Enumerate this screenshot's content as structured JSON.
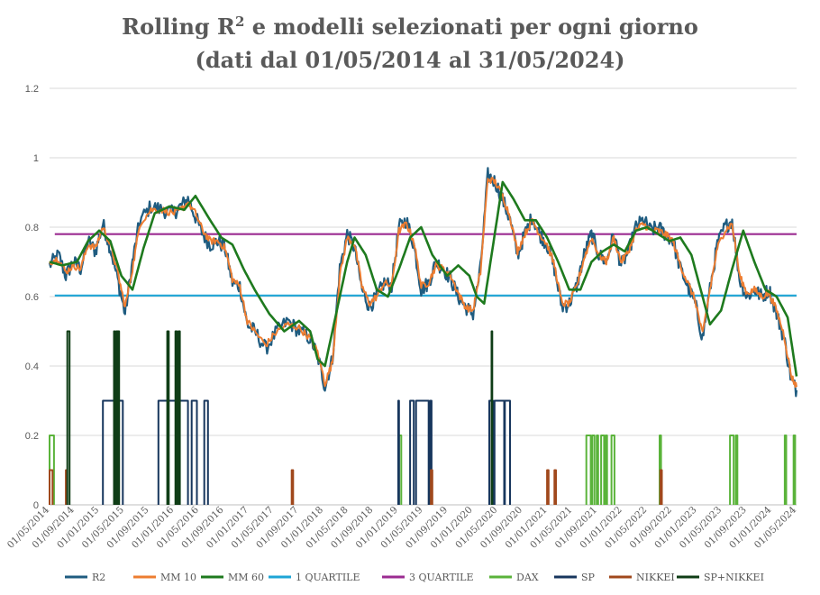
{
  "chart_data": {
    "type": "line",
    "title_line1": "Rolling R",
    "title_sup": "2",
    "title_line1_rest": " e modelli selezionati per ogni giorno",
    "title_line2": "(dati dal 01/05/2014 al 31/05/2024)",
    "xlabel": "",
    "ylabel": "",
    "ylim": [
      0,
      1.2
    ],
    "yticks": [
      "0",
      "0.2",
      "0.4",
      "0.6",
      "0.8",
      "1",
      "1.2"
    ],
    "xlim": [
      2014.33,
      2024.42
    ],
    "xticks": [
      "01/05/2014",
      "01/09/2014",
      "01/01/2015",
      "01/05/2015",
      "01/09/2015",
      "01/01/2016",
      "01/05/2016",
      "01/09/2016",
      "01/01/2017",
      "01/05/2017",
      "01/09/2017",
      "01/01/2018",
      "01/05/2018",
      "01/09/2018",
      "01/01/2019",
      "01/05/2019",
      "01/09/2019",
      "01/01/2020",
      "01/05/2020",
      "01/09/2020",
      "01/01/2021",
      "01/05/2021",
      "01/09/2021",
      "01/01/2022",
      "01/05/2022",
      "01/09/2022",
      "01/01/2023",
      "01/05/2023",
      "01/09/2023",
      "01/01/2024",
      "01/05/2024"
    ],
    "grid": true,
    "legend_position": "bottom",
    "series": [
      {
        "name": "R2",
        "color": "#1f5c80",
        "width": 2.2,
        "noise": 0.022,
        "x": [
          2014.33,
          2014.45,
          2014.55,
          2014.65,
          2014.75,
          2014.85,
          2014.95,
          2015.05,
          2015.15,
          2015.25,
          2015.35,
          2015.45,
          2015.55,
          2015.7,
          2015.85,
          2016.0,
          2016.1,
          2016.2,
          2016.3,
          2016.4,
          2016.5,
          2016.6,
          2016.7,
          2016.8,
          2016.9,
          2017.0,
          2017.1,
          2017.25,
          2017.4,
          2017.55,
          2017.7,
          2017.85,
          2017.95,
          2018.05,
          2018.15,
          2018.25,
          2018.35,
          2018.45,
          2018.55,
          2018.65,
          2018.75,
          2018.85,
          2018.95,
          2019.05,
          2019.15,
          2019.25,
          2019.35,
          2019.45,
          2019.55,
          2019.65,
          2019.75,
          2019.85,
          2019.95,
          2020.05,
          2020.15,
          2020.25,
          2020.35,
          2020.45,
          2020.55,
          2020.65,
          2020.75,
          2020.85,
          2020.95,
          2021.05,
          2021.15,
          2021.25,
          2021.35,
          2021.45,
          2021.55,
          2021.65,
          2021.75,
          2021.85,
          2021.95,
          2022.05,
          2022.15,
          2022.25,
          2022.35,
          2022.45,
          2022.55,
          2022.65,
          2022.75,
          2022.85,
          2022.95,
          2023.05,
          2023.15,
          2023.25,
          2023.35,
          2023.45,
          2023.55,
          2023.65,
          2023.75,
          2023.85,
          2023.95,
          2024.05,
          2024.15,
          2024.25,
          2024.35,
          2024.42
        ],
        "y": [
          0.69,
          0.72,
          0.66,
          0.7,
          0.68,
          0.76,
          0.73,
          0.81,
          0.74,
          0.65,
          0.55,
          0.7,
          0.82,
          0.86,
          0.85,
          0.84,
          0.86,
          0.88,
          0.83,
          0.78,
          0.75,
          0.76,
          0.74,
          0.64,
          0.63,
          0.52,
          0.5,
          0.45,
          0.5,
          0.53,
          0.5,
          0.48,
          0.43,
          0.34,
          0.42,
          0.68,
          0.78,
          0.74,
          0.62,
          0.57,
          0.6,
          0.64,
          0.63,
          0.8,
          0.82,
          0.75,
          0.62,
          0.64,
          0.7,
          0.68,
          0.65,
          0.6,
          0.57,
          0.55,
          0.68,
          0.95,
          0.93,
          0.88,
          0.82,
          0.72,
          0.78,
          0.83,
          0.78,
          0.75,
          0.68,
          0.57,
          0.58,
          0.63,
          0.72,
          0.78,
          0.72,
          0.7,
          0.78,
          0.69,
          0.73,
          0.8,
          0.82,
          0.79,
          0.8,
          0.78,
          0.76,
          0.68,
          0.63,
          0.58,
          0.48,
          0.62,
          0.75,
          0.8,
          0.82,
          0.65,
          0.6,
          0.62,
          0.6,
          0.62,
          0.55,
          0.48,
          0.36,
          0.33
        ]
      },
      {
        "name": "MM 10",
        "color": "#ed7d31",
        "width": 2.0,
        "noise": 0.01,
        "x": [
          2014.33,
          2014.45,
          2014.55,
          2014.65,
          2014.75,
          2014.85,
          2014.95,
          2015.05,
          2015.15,
          2015.25,
          2015.35,
          2015.45,
          2015.55,
          2015.7,
          2015.85,
          2016.0,
          2016.1,
          2016.2,
          2016.3,
          2016.4,
          2016.5,
          2016.6,
          2016.7,
          2016.8,
          2016.9,
          2017.0,
          2017.1,
          2017.25,
          2017.4,
          2017.55,
          2017.7,
          2017.85,
          2017.95,
          2018.05,
          2018.15,
          2018.25,
          2018.35,
          2018.45,
          2018.55,
          2018.65,
          2018.75,
          2018.85,
          2018.95,
          2019.05,
          2019.15,
          2019.25,
          2019.35,
          2019.45,
          2019.55,
          2019.65,
          2019.75,
          2019.85,
          2019.95,
          2020.05,
          2020.15,
          2020.25,
          2020.35,
          2020.45,
          2020.55,
          2020.65,
          2020.75,
          2020.85,
          2020.95,
          2021.05,
          2021.15,
          2021.25,
          2021.35,
          2021.45,
          2021.55,
          2021.65,
          2021.75,
          2021.85,
          2021.95,
          2022.05,
          2022.15,
          2022.25,
          2022.35,
          2022.45,
          2022.55,
          2022.65,
          2022.75,
          2022.85,
          2022.95,
          2023.05,
          2023.15,
          2023.25,
          2023.35,
          2023.45,
          2023.55,
          2023.65,
          2023.75,
          2023.85,
          2023.95,
          2024.05,
          2024.15,
          2024.25,
          2024.35,
          2024.42
        ],
        "y": [
          0.7,
          0.71,
          0.67,
          0.69,
          0.68,
          0.75,
          0.74,
          0.8,
          0.75,
          0.67,
          0.57,
          0.68,
          0.81,
          0.85,
          0.85,
          0.84,
          0.85,
          0.87,
          0.84,
          0.79,
          0.76,
          0.76,
          0.74,
          0.65,
          0.63,
          0.53,
          0.5,
          0.46,
          0.5,
          0.52,
          0.51,
          0.48,
          0.44,
          0.35,
          0.41,
          0.66,
          0.77,
          0.75,
          0.63,
          0.58,
          0.6,
          0.64,
          0.63,
          0.79,
          0.81,
          0.76,
          0.63,
          0.64,
          0.69,
          0.68,
          0.66,
          0.61,
          0.57,
          0.56,
          0.67,
          0.94,
          0.93,
          0.89,
          0.83,
          0.73,
          0.78,
          0.82,
          0.78,
          0.75,
          0.69,
          0.58,
          0.58,
          0.63,
          0.71,
          0.77,
          0.72,
          0.7,
          0.77,
          0.7,
          0.73,
          0.79,
          0.81,
          0.79,
          0.79,
          0.78,
          0.76,
          0.69,
          0.64,
          0.59,
          0.49,
          0.62,
          0.74,
          0.79,
          0.81,
          0.66,
          0.61,
          0.62,
          0.6,
          0.61,
          0.56,
          0.49,
          0.37,
          0.34
        ]
      },
      {
        "name": "MM 60",
        "color": "#1e7a1e",
        "width": 2.6,
        "noise": 0,
        "x": [
          2014.33,
          2014.5,
          2014.7,
          2014.85,
          2015.0,
          2015.15,
          2015.3,
          2015.45,
          2015.6,
          2015.75,
          2015.95,
          2016.15,
          2016.3,
          2016.5,
          2016.65,
          2016.8,
          2016.95,
          2017.1,
          2017.3,
          2017.5,
          2017.7,
          2017.85,
          2017.95,
          2018.05,
          2018.2,
          2018.35,
          2018.45,
          2018.6,
          2018.75,
          2018.9,
          2019.05,
          2019.2,
          2019.35,
          2019.5,
          2019.7,
          2019.85,
          2020.0,
          2020.1,
          2020.2,
          2020.3,
          2020.45,
          2020.6,
          2020.75,
          2020.9,
          2021.05,
          2021.2,
          2021.35,
          2021.5,
          2021.65,
          2021.8,
          2021.95,
          2022.1,
          2022.25,
          2022.4,
          2022.55,
          2022.7,
          2022.85,
          2023.0,
          2023.1,
          2023.25,
          2023.4,
          2023.55,
          2023.7,
          2023.85,
          2024.0,
          2024.15,
          2024.3,
          2024.42
        ],
        "y": [
          0.7,
          0.69,
          0.7,
          0.76,
          0.79,
          0.76,
          0.66,
          0.62,
          0.74,
          0.84,
          0.86,
          0.85,
          0.89,
          0.82,
          0.77,
          0.75,
          0.68,
          0.62,
          0.55,
          0.5,
          0.53,
          0.5,
          0.42,
          0.4,
          0.55,
          0.7,
          0.77,
          0.72,
          0.62,
          0.6,
          0.68,
          0.77,
          0.8,
          0.72,
          0.66,
          0.69,
          0.66,
          0.6,
          0.58,
          0.72,
          0.93,
          0.88,
          0.82,
          0.82,
          0.77,
          0.7,
          0.62,
          0.62,
          0.7,
          0.73,
          0.75,
          0.73,
          0.79,
          0.8,
          0.78,
          0.76,
          0.77,
          0.72,
          0.64,
          0.52,
          0.56,
          0.68,
          0.79,
          0.7,
          0.62,
          0.6,
          0.54,
          0.37
        ]
      },
      {
        "name": "1 QUARTILE",
        "color": "#1ea5d6",
        "width": 2.2,
        "noise": 0,
        "x": [
          2014.4,
          2024.42
        ],
        "y": [
          0.603,
          0.603
        ]
      },
      {
        "name": "3 QUARTILE",
        "color": "#9b2c91",
        "width": 2.2,
        "noise": 0,
        "x": [
          2014.4,
          2024.42
        ],
        "y": [
          0.78,
          0.78
        ]
      },
      {
        "name": "DAX",
        "color": "#5ab33a",
        "width": 2.0,
        "step": true,
        "value": 0.2,
        "intervals": [
          [
            2014.33,
            2014.39
          ],
          [
            2019.05,
            2019.08
          ],
          [
            2021.58,
            2021.64
          ],
          [
            2021.66,
            2021.69
          ],
          [
            2021.72,
            2021.74
          ],
          [
            2021.78,
            2021.82
          ],
          [
            2021.84,
            2021.86
          ],
          [
            2021.92,
            2021.96
          ],
          [
            2022.57,
            2022.59
          ],
          [
            2023.52,
            2023.57
          ],
          [
            2023.6,
            2023.62
          ],
          [
            2024.26,
            2024.28
          ],
          [
            2024.38,
            2024.4
          ]
        ]
      },
      {
        "name": "SP",
        "color": "#17365d",
        "width": 2.0,
        "step": true,
        "value": 0.3,
        "intervals": [
          [
            2015.05,
            2015.32
          ],
          [
            2015.8,
            2016.2
          ],
          [
            2016.25,
            2016.32
          ],
          [
            2016.42,
            2016.47
          ],
          [
            2019.04,
            2019.05
          ],
          [
            2019.2,
            2019.25
          ],
          [
            2019.28,
            2019.45
          ],
          [
            2019.47,
            2019.49
          ],
          [
            2020.27,
            2020.32
          ],
          [
            2020.34,
            2020.47
          ],
          [
            2020.48,
            2020.55
          ]
        ]
      },
      {
        "name": "NIKKEI",
        "color": "#a0481c",
        "width": 2.0,
        "step": true,
        "value": 0.1,
        "intervals": [
          [
            2014.33,
            2014.37
          ],
          [
            2014.55,
            2014.56
          ],
          [
            2017.6,
            2017.62
          ],
          [
            2019.48,
            2019.5
          ],
          [
            2021.05,
            2021.07
          ],
          [
            2021.15,
            2021.17
          ],
          [
            2022.58,
            2022.6
          ]
        ]
      },
      {
        "name": "SP+NIKKEI",
        "color": "#0f3d16",
        "width": 2.0,
        "step": true,
        "value": 0.5,
        "intervals": [
          [
            2014.57,
            2014.6
          ],
          [
            2015.2,
            2015.21
          ],
          [
            2015.23,
            2015.25
          ],
          [
            2015.26,
            2015.27
          ],
          [
            2015.92,
            2015.94
          ],
          [
            2016.03,
            2016.05
          ],
          [
            2016.07,
            2016.09
          ],
          [
            2020.3,
            2020.31
          ]
        ]
      }
    ]
  }
}
